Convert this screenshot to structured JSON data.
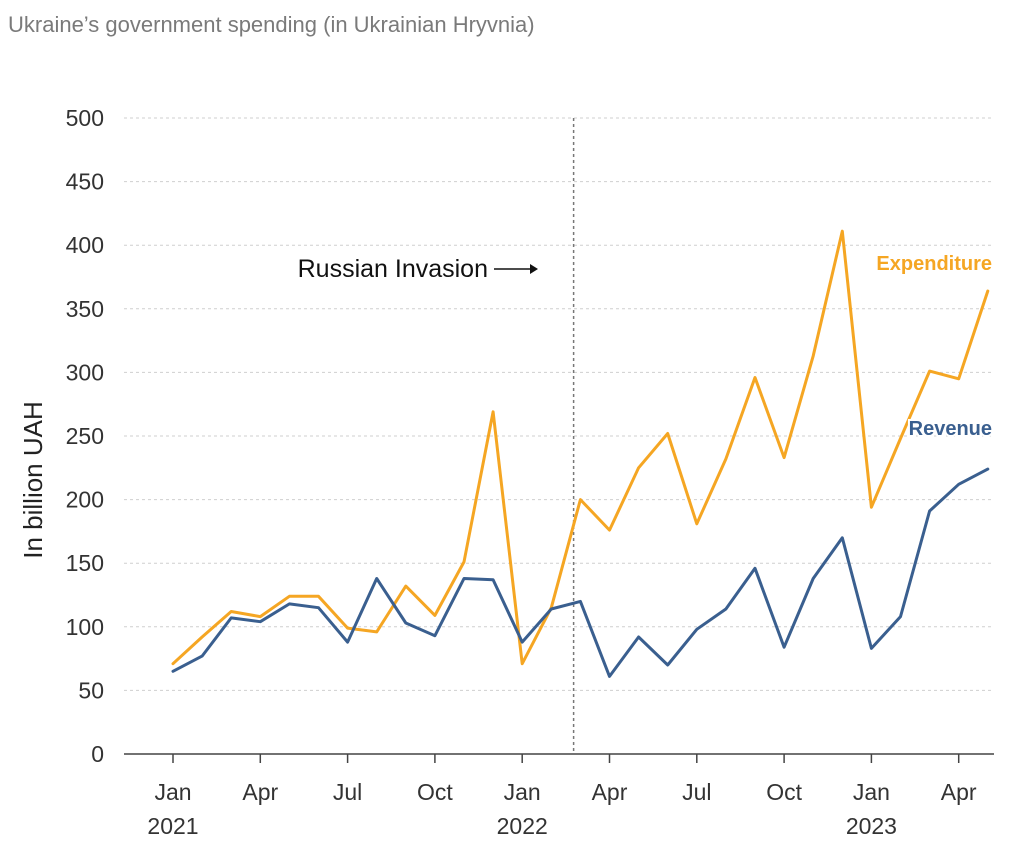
{
  "subtitle": "Ukraine’s government spending (in Ukrainian Hryvnia)",
  "chart_data": {
    "type": "line",
    "title": "",
    "subtitle": "Ukraine’s government spending (in Ukrainian Hryvnia)",
    "xlabel": "",
    "ylabel": "In billion UAH",
    "ylim": [
      0,
      500
    ],
    "yticks": [
      0,
      50,
      100,
      150,
      200,
      250,
      300,
      350,
      400,
      450,
      500
    ],
    "grid": "horizontal dashed",
    "x": [
      "2021-01",
      "2021-02",
      "2021-03",
      "2021-04",
      "2021-05",
      "2021-06",
      "2021-07",
      "2021-08",
      "2021-09",
      "2021-10",
      "2021-11",
      "2021-12",
      "2022-01",
      "2022-02",
      "2022-03",
      "2022-04",
      "2022-05",
      "2022-06",
      "2022-07",
      "2022-08",
      "2022-09",
      "2022-10",
      "2022-11",
      "2022-12",
      "2023-01",
      "2023-02",
      "2023-03",
      "2023-04",
      "2023-05"
    ],
    "xtick_labels": [
      {
        "month": "Jan",
        "year": "2021",
        "x": "2021-01"
      },
      {
        "month": "Apr",
        "year": "",
        "x": "2021-04"
      },
      {
        "month": "Jul",
        "year": "",
        "x": "2021-07"
      },
      {
        "month": "Oct",
        "year": "",
        "x": "2021-10"
      },
      {
        "month": "Jan",
        "year": "2022",
        "x": "2022-01"
      },
      {
        "month": "Apr",
        "year": "",
        "x": "2022-04"
      },
      {
        "month": "Jul",
        "year": "",
        "x": "2022-07"
      },
      {
        "month": "Oct",
        "year": "",
        "x": "2022-10"
      },
      {
        "month": "Jan",
        "year": "2023",
        "x": "2023-01"
      },
      {
        "month": "Apr",
        "year": "",
        "x": "2023-04"
      }
    ],
    "series": [
      {
        "name": "Expenditure",
        "color": "#f5a623",
        "values": [
          71,
          92,
          112,
          108,
          124,
          124,
          99,
          96,
          132,
          109,
          151,
          269,
          71,
          115,
          200,
          176,
          225,
          252,
          181,
          232,
          296,
          233,
          313,
          411,
          194,
          248,
          301,
          295,
          364
        ]
      },
      {
        "name": "Revenue",
        "color": "#3a5f8f",
        "values": [
          65,
          77,
          107,
          104,
          118,
          115,
          88,
          138,
          103,
          93,
          138,
          137,
          88,
          114,
          120,
          61,
          92,
          70,
          98,
          114,
          146,
          84,
          138,
          170,
          83,
          108,
          191,
          212,
          224
        ]
      }
    ],
    "annotations": [
      {
        "text": "Russian Invasion",
        "x": "2022-02-24",
        "marker": "vertical dotted line"
      }
    ]
  }
}
